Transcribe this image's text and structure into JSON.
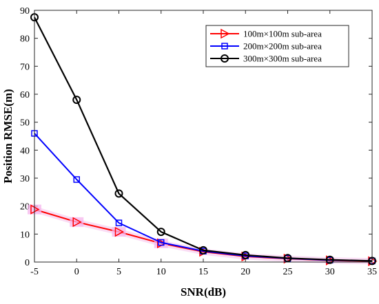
{
  "chart_data": {
    "type": "line",
    "title": "",
    "xlabel": "SNR(dB)",
    "ylabel": "Position RMSE(m)",
    "x": [
      -5,
      0,
      5,
      10,
      15,
      20,
      25,
      30,
      35
    ],
    "xlim": [
      -5,
      35
    ],
    "ylim": [
      0,
      90
    ],
    "xticks": [
      -5,
      0,
      5,
      10,
      15,
      20,
      25,
      30,
      35
    ],
    "yticks": [
      0,
      10,
      20,
      30,
      40,
      50,
      60,
      70,
      80,
      90
    ],
    "grid": false,
    "legend_position": "top-right",
    "series": [
      {
        "name": "100m×100m sub-area",
        "color": "#ff0000",
        "marker": "triangle-right",
        "values": [
          18.8,
          14.3,
          10.8,
          6.7,
          3.7,
          2.0,
          1.2,
          0.6,
          0.3
        ]
      },
      {
        "name": "200m×200m sub-area",
        "color": "#0000ff",
        "marker": "square",
        "values": [
          46.0,
          29.5,
          14.0,
          7.0,
          3.9,
          2.2,
          1.3,
          0.7,
          0.4
        ]
      },
      {
        "name": "300m×300m sub-area",
        "color": "#000000",
        "marker": "circle",
        "values": [
          87.5,
          58.0,
          24.5,
          10.8,
          4.2,
          2.5,
          1.4,
          0.8,
          0.4
        ]
      }
    ]
  }
}
